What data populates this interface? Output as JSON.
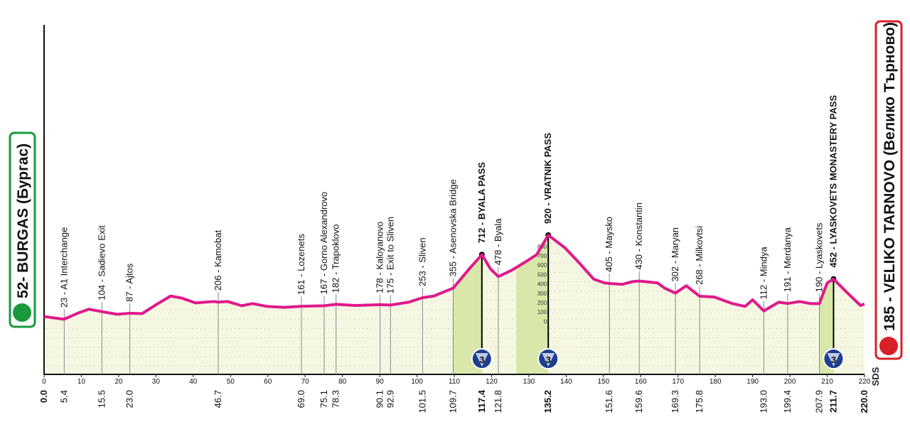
{
  "chart_data": {
    "type": "area",
    "start_label": "52- BURGAS (Бургас)",
    "finish_label": "185 - VELIKO TARNOVO (Велико Търново)",
    "logo": "SDS",
    "color": "#e0198a",
    "fill": "#f5f7e2",
    "climb_color": "#d9e7aa",
    "badge_color": "#1c3f8f",
    "x": [
      0,
      5.3,
      9.2,
      12,
      15.5,
      19.6,
      23,
      26.3,
      30.1,
      33.9,
      36.8,
      40.6,
      45.4,
      46.7,
      49.2,
      53,
      55.9,
      59.7,
      64.4,
      69,
      75.1,
      78.3,
      83.5,
      90.1,
      92.9,
      97.8,
      101.5,
      104.5,
      109.7,
      114,
      117.4,
      119.7,
      121.8,
      125.4,
      129.3,
      132.1,
      135.2,
      139.8,
      143.6,
      147.4,
      150.3,
      151.6,
      155,
      157.9,
      159.6,
      164.5,
      166.4,
      169.3,
      172.2,
      175.8,
      179.7,
      184.6,
      188,
      190,
      193,
      197,
      199.4,
      202.6,
      205.5,
      207.9,
      210,
      211.7,
      215,
      218.9,
      220
    ],
    "values": [
      52,
      23,
      90,
      130,
      104,
      76,
      87,
      83,
      180,
      270,
      250,
      197,
      212,
      206,
      212,
      167,
      190,
      160,
      150,
      161,
      167,
      182,
      170,
      178,
      175,
      205,
      253,
      270,
      355,
      560,
      712,
      560,
      478,
      545,
      640,
      712,
      920,
      780,
      620,
      450,
      410,
      405,
      395,
      425,
      430,
      410,
      355,
      302,
      380,
      268,
      260,
      190,
      160,
      230,
      112,
      205,
      191,
      212,
      190,
      190,
      410,
      452,
      320,
      170,
      185
    ],
    "xlim": [
      0,
      220
    ],
    "ylim": [
      -565,
      3200
    ],
    "xticks": [
      0,
      10,
      20,
      30,
      40,
      50,
      60,
      70,
      80,
      90,
      100,
      110,
      120,
      130,
      140,
      150,
      160,
      170,
      180,
      190,
      200,
      210,
      220
    ],
    "yticks": [
      0,
      100,
      200,
      300,
      400,
      500,
      600,
      700,
      800
    ],
    "start_km": {
      "value": 0,
      "label": "0.0"
    },
    "finish_km": {
      "value": 220,
      "label": "220.0"
    },
    "markers": [
      {
        "km": 5.4,
        "label": "23 - A1 Interchange"
      },
      {
        "km": 15.5,
        "label": "104 - Sadievo Exit"
      },
      {
        "km": {
          "value": 23,
          "label": "23.0"
        },
        "label": "87 - Ajtos"
      },
      {
        "km": 46.7,
        "label": "206 - Kamobat"
      },
      {
        "km": {
          "value": 69,
          "label": "69.0"
        },
        "label": "161 - Lozenets"
      },
      {
        "km": 75.1,
        "label": "167 - Gorno Alexandrovo"
      },
      {
        "km": 78.3,
        "label": "182 - Trapoklovo"
      },
      {
        "km": 90.1,
        "label": "178 - Kaloyanovo"
      },
      {
        "km": 92.9,
        "label": "175 - Exit to Sliven"
      },
      {
        "km": 101.5,
        "label": "253 - Sliven"
      },
      {
        "km": 109.7,
        "label": "355 - Asenovska Bridge"
      },
      {
        "km": 117.4,
        "label": "712 - BYALA PASS",
        "pass": true
      },
      {
        "km": 121.8,
        "label": "478 - Byala"
      },
      {
        "km": 135.2,
        "label": "920 - VRATNIK PASS",
        "pass": true
      },
      {
        "km": 151.6,
        "label": "405 - Maysko"
      },
      {
        "km": 159.6,
        "label": "430 - Konstantin"
      },
      {
        "km": 169.3,
        "label": "302 - Maryan"
      },
      {
        "km": 175.8,
        "label": "268 - Milkovtsi"
      },
      {
        "km": {
          "value": 193,
          "label": "193.0"
        },
        "label": "112 - Mindya"
      },
      {
        "km": 199.4,
        "label": "191 - Merdanya"
      },
      {
        "km": 207.9,
        "label": "190 - Lyaskovets"
      },
      {
        "km": 211.7,
        "label": "452 - LYASKOVETS MONASTERY PASS",
        "pass": true
      }
    ],
    "climbs": [
      {
        "category": 3,
        "start": 109.7,
        "top": 117.4
      },
      {
        "category": 3,
        "start": 126.6,
        "top": 135.2
      },
      {
        "category": 3,
        "start": 207.9,
        "top": 211.7
      }
    ]
  }
}
